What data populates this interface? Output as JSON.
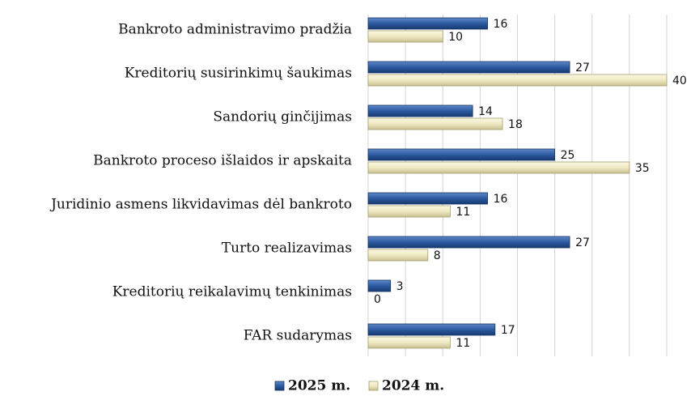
{
  "chart_data": {
    "type": "bar",
    "orientation": "horizontal",
    "categories": [
      "Bankroto administravimo pradžia",
      "Kreditorių susirinkimų šaukimas",
      "Sandorių ginčijimas",
      "Bankroto proceso išlaidos ir apskaita",
      "Juridinio asmens likvidavimas dėl bankroto",
      "Turto realizavimas",
      "Kreditorių reikalavimų tenkinimas",
      "FAR sudarymas"
    ],
    "series": [
      {
        "name": "2025 m.",
        "color": "#2c5aa0",
        "values": [
          16,
          27,
          14,
          25,
          16,
          27,
          3,
          17
        ]
      },
      {
        "name": "2024 m.",
        "color": "#efe9c2",
        "values": [
          10,
          40,
          18,
          35,
          11,
          8,
          0,
          11
        ]
      }
    ],
    "xlim": [
      0,
      40
    ],
    "xticks": [
      0,
      5,
      10,
      15,
      20,
      25,
      30,
      35,
      40
    ],
    "grid": true,
    "legend": "bottom"
  }
}
